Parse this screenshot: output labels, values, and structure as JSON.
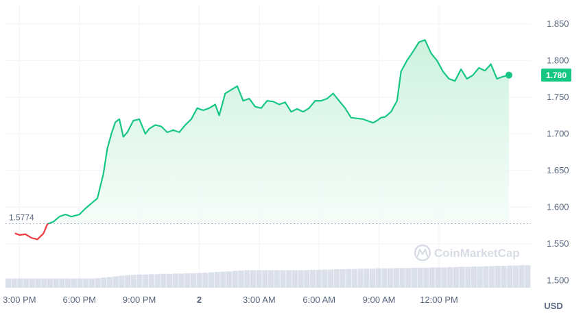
{
  "watermark": {
    "text": "CoinMarketCap",
    "icon": "coinmarketcap-logo-icon"
  },
  "colors": {
    "up_line": "#16c784",
    "down_line": "#ea3943",
    "area_top": "#c9f1dd",
    "area_bottom": "#ffffff",
    "grid": "#f2f3f5",
    "axis_text": "#58667e",
    "baseline": "#a6b0c3",
    "volume": "#cfd6e4",
    "price_tag_bg": "#16c784",
    "price_tag_text": "#ffffff"
  },
  "chart_data": {
    "type": "line",
    "currency_label": "USD",
    "baseline": {
      "value": 1.5774,
      "label": "1.5774"
    },
    "last_price": {
      "value": 1.78,
      "label": "1.780"
    },
    "ylim": [
      1.49,
      1.875
    ],
    "y_ticks": [
      {
        "value": 1.85,
        "label": "1.850"
      },
      {
        "value": 1.8,
        "label": "1.800"
      },
      {
        "value": 1.75,
        "label": "1.750"
      },
      {
        "value": 1.7,
        "label": "1.700"
      },
      {
        "value": 1.65,
        "label": "1.650"
      },
      {
        "value": 1.6,
        "label": "1.600"
      },
      {
        "value": 1.55,
        "label": "1.550"
      },
      {
        "value": 1.5,
        "label": "1.500"
      }
    ],
    "xlim": [
      14.3,
      40.6
    ],
    "x_ticks": [
      {
        "value": 15,
        "label": "3:00 PM"
      },
      {
        "value": 18,
        "label": "6:00 PM"
      },
      {
        "value": 21,
        "label": "9:00 PM"
      },
      {
        "value": 24,
        "label": "2"
      },
      {
        "value": 27,
        "label": "3:00 AM"
      },
      {
        "value": 30,
        "label": "6:00 AM"
      },
      {
        "value": 33,
        "label": "9:00 AM"
      },
      {
        "value": 36,
        "label": "12:00 PM"
      }
    ],
    "x": [
      14.8,
      15.0,
      15.3,
      15.6,
      15.9,
      16.2,
      16.4,
      16.7,
      17.0,
      17.3,
      17.6,
      18.0,
      18.3,
      18.6,
      18.9,
      19.2,
      19.4,
      19.6,
      19.8,
      20.0,
      20.2,
      20.4,
      20.7,
      21.0,
      21.3,
      21.5,
      21.8,
      22.1,
      22.4,
      22.7,
      23.0,
      23.3,
      23.6,
      23.9,
      24.2,
      24.5,
      24.8,
      25.0,
      25.3,
      25.6,
      25.9,
      26.2,
      26.5,
      26.8,
      27.1,
      27.4,
      27.7,
      28.0,
      28.3,
      28.6,
      28.9,
      29.2,
      29.5,
      29.8,
      30.1,
      30.4,
      30.7,
      31.0,
      31.3,
      31.6,
      31.9,
      32.2,
      32.5,
      32.7,
      32.9,
      33.1,
      33.3,
      33.6,
      33.9,
      34.1,
      34.4,
      34.7,
      35.0,
      35.3,
      35.6,
      35.9,
      36.2,
      36.5,
      36.8,
      37.1,
      37.4,
      37.7,
      38.0,
      38.3,
      38.6,
      38.9,
      39.2,
      39.5
    ],
    "series": [
      {
        "values": [
          1.564,
          1.562,
          1.563,
          1.558,
          1.556,
          1.564,
          1.577,
          1.58,
          1.587,
          1.59,
          1.587,
          1.59,
          1.598,
          1.605,
          1.612,
          1.645,
          1.68,
          1.7,
          1.716,
          1.72,
          1.696,
          1.702,
          1.718,
          1.72,
          1.7,
          1.707,
          1.712,
          1.71,
          1.702,
          1.705,
          1.702,
          1.712,
          1.72,
          1.735,
          1.732,
          1.735,
          1.74,
          1.725,
          1.755,
          1.76,
          1.765,
          1.745,
          1.748,
          1.737,
          1.735,
          1.745,
          1.744,
          1.74,
          1.743,
          1.73,
          1.734,
          1.73,
          1.735,
          1.745,
          1.745,
          1.748,
          1.755,
          1.745,
          1.735,
          1.722,
          1.721,
          1.72,
          1.717,
          1.715,
          1.718,
          1.722,
          1.723,
          1.73,
          1.745,
          1.785,
          1.8,
          1.812,
          1.825,
          1.828,
          1.81,
          1.8,
          1.785,
          1.775,
          1.772,
          1.788,
          1.775,
          1.78,
          1.79,
          1.786,
          1.795,
          1.775,
          1.778,
          1.78
        ]
      }
    ],
    "volume_relative": [
      0.3,
      0.3,
      0.3,
      0.3,
      0.3,
      0.3,
      0.3,
      0.3,
      0.3,
      0.3,
      0.3,
      0.3,
      0.3,
      0.3,
      0.3,
      0.31,
      0.33,
      0.35,
      0.37,
      0.39,
      0.41,
      0.42,
      0.43,
      0.43,
      0.44,
      0.44,
      0.45,
      0.45,
      0.46,
      0.46,
      0.47,
      0.47,
      0.48,
      0.49,
      0.5,
      0.51,
      0.52,
      0.53,
      0.55,
      0.56,
      0.57,
      0.57,
      0.57,
      0.57,
      0.57,
      0.57,
      0.57,
      0.57,
      0.57,
      0.57,
      0.57,
      0.58,
      0.58,
      0.59,
      0.59,
      0.6,
      0.6,
      0.61,
      0.61,
      0.62,
      0.62,
      0.62,
      0.63,
      0.63,
      0.63,
      0.64,
      0.64,
      0.64,
      0.65,
      0.65,
      0.65,
      0.66,
      0.66,
      0.66,
      0.67,
      0.67,
      0.68,
      0.68,
      0.69,
      0.69,
      0.7,
      0.7,
      0.71,
      0.71,
      0.72,
      0.72,
      0.73,
      0.73
    ]
  }
}
